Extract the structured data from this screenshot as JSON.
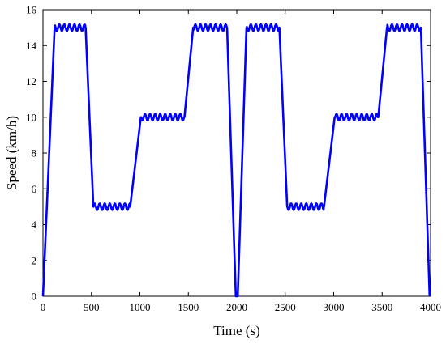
{
  "chart_data": {
    "type": "line",
    "title": "",
    "xlabel": "Time (s)",
    "ylabel": "Speed (km/h)",
    "xlim": [
      0,
      4000
    ],
    "ylim": [
      0,
      16
    ],
    "xticks": [
      0,
      500,
      1000,
      1500,
      2000,
      2500,
      3000,
      3500,
      4000
    ],
    "yticks": [
      0,
      2,
      4,
      6,
      8,
      10,
      12,
      14,
      16
    ],
    "grid": false,
    "legend": "none",
    "ripple": {
      "amplitude": 0.18,
      "period": 52
    },
    "series": [
      {
        "color": "#0000ff",
        "x": [
          0,
          120,
          440,
          520,
          900,
          1010,
          1460,
          1550,
          1900,
          1990,
          2000,
          2010,
          2100,
          2440,
          2520,
          2900,
          3010,
          3460,
          3550,
          3900,
          3990
        ],
        "y": [
          0,
          15,
          15,
          5,
          5,
          10,
          10,
          15,
          15,
          0,
          0,
          0,
          15,
          15,
          5,
          5,
          10,
          10,
          15,
          15,
          0
        ],
        "plateaus": [
          [
            120,
            440
          ],
          [
            520,
            900
          ],
          [
            1010,
            1460
          ],
          [
            1550,
            1900
          ],
          [
            2100,
            2440
          ],
          [
            2520,
            2900
          ],
          [
            3010,
            3460
          ],
          [
            3550,
            3900
          ]
        ]
      }
    ]
  }
}
